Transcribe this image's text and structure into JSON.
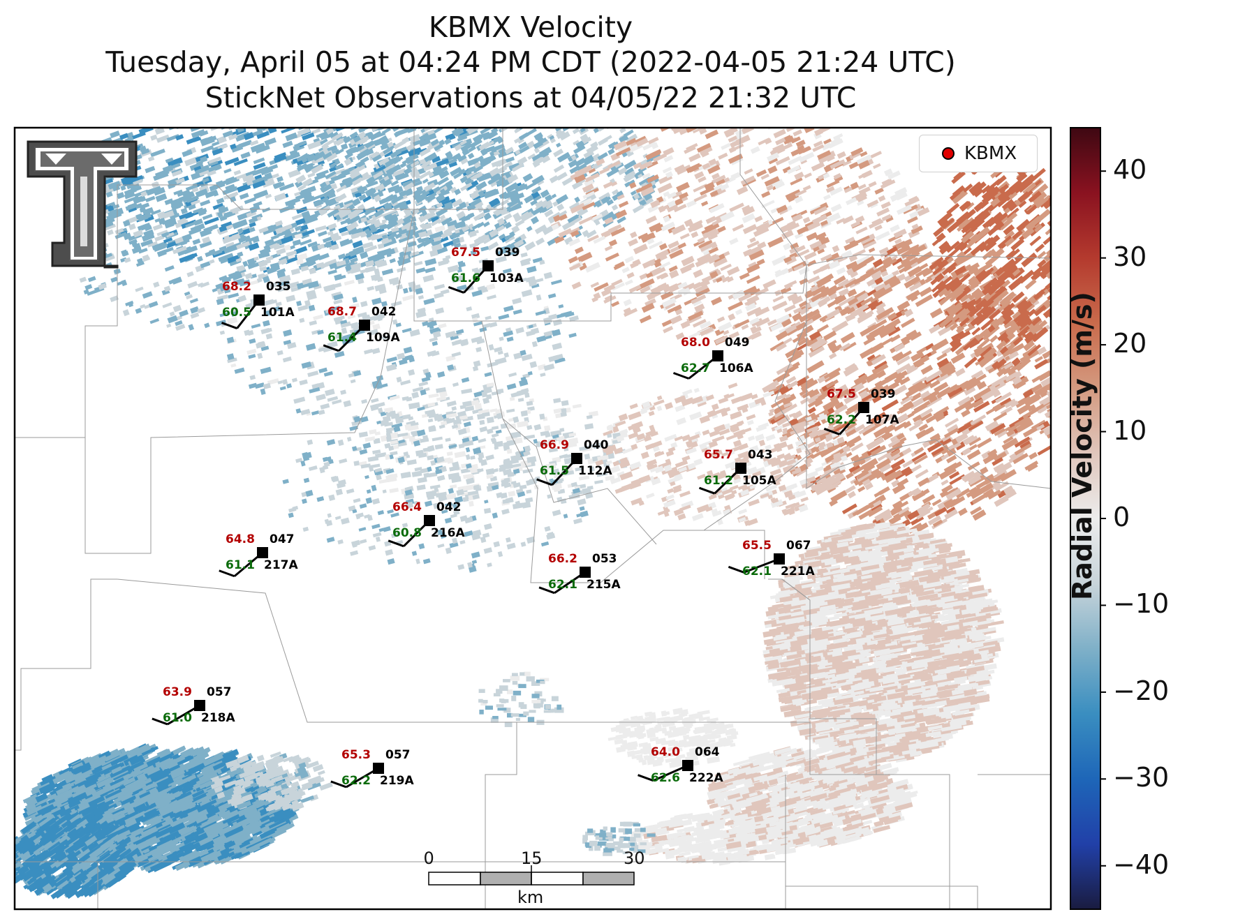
{
  "title": {
    "line1": "KBMX Velocity",
    "line2": "Tuesday, April 05 at 04:24 PM CDT (2022-04-05 21:24 UTC)",
    "line3": "StickNet Observations at 04/05/22 21:32 UTC"
  },
  "legend": {
    "label": "KBMX",
    "marker_color": "#e00000"
  },
  "colorbar": {
    "label": "Radial Velocity (m/s)",
    "range": [
      -45,
      45
    ],
    "ticks": [
      {
        "value": 40,
        "label": "40"
      },
      {
        "value": 30,
        "label": "30"
      },
      {
        "value": 20,
        "label": "20"
      },
      {
        "value": 10,
        "label": "10"
      },
      {
        "value": 0,
        "label": "0"
      },
      {
        "value": -10,
        "label": "−10"
      },
      {
        "value": -20,
        "label": "−20"
      },
      {
        "value": -30,
        "label": "−30"
      },
      {
        "value": -40,
        "label": "−40"
      }
    ],
    "colors": [
      "#1a1c40",
      "#2140a8",
      "#1e66b8",
      "#3a8ec0",
      "#7fb0c8",
      "#c8d4da",
      "#ececec",
      "#e0c6bc",
      "#d49a80",
      "#c96b4c",
      "#b43a2e",
      "#8a1220",
      "#3e0812"
    ]
  },
  "scalebar": {
    "ticks": [
      "0",
      "15",
      "30"
    ],
    "unit": "km"
  },
  "logo": "texas-tech-double-t-logo",
  "stations": [
    {
      "id": "101A",
      "temp": "68.2",
      "dew": "60.5",
      "dir": "035"
    },
    {
      "id": "109A",
      "temp": "68.7",
      "dew": "61.4",
      "dir": "042"
    },
    {
      "id": "103A",
      "temp": "67.5",
      "dew": "61.6",
      "dir": "039"
    },
    {
      "id": "106A",
      "temp": "68.0",
      "dew": "62.7",
      "dir": "049"
    },
    {
      "id": "107A",
      "temp": "67.5",
      "dew": "62.2",
      "dir": "039"
    },
    {
      "id": "112A",
      "temp": "66.9",
      "dew": "61.5",
      "dir": "040"
    },
    {
      "id": "105A",
      "temp": "65.7",
      "dew": "61.2",
      "dir": "043"
    },
    {
      "id": "216A",
      "temp": "66.4",
      "dew": "60.8",
      "dir": "042"
    },
    {
      "id": "217A",
      "temp": "64.8",
      "dew": "61.1",
      "dir": "047"
    },
    {
      "id": "215A",
      "temp": "66.2",
      "dew": "62.1",
      "dir": "053"
    },
    {
      "id": "221A",
      "temp": "65.5",
      "dew": "62.1",
      "dir": "067"
    },
    {
      "id": "218A",
      "temp": "63.9",
      "dew": "61.0",
      "dir": "057"
    },
    {
      "id": "219A",
      "temp": "65.3",
      "dew": "62.2",
      "dir": "057"
    },
    {
      "id": "222A",
      "temp": "64.0",
      "dew": "62.6",
      "dir": "064"
    }
  ]
}
